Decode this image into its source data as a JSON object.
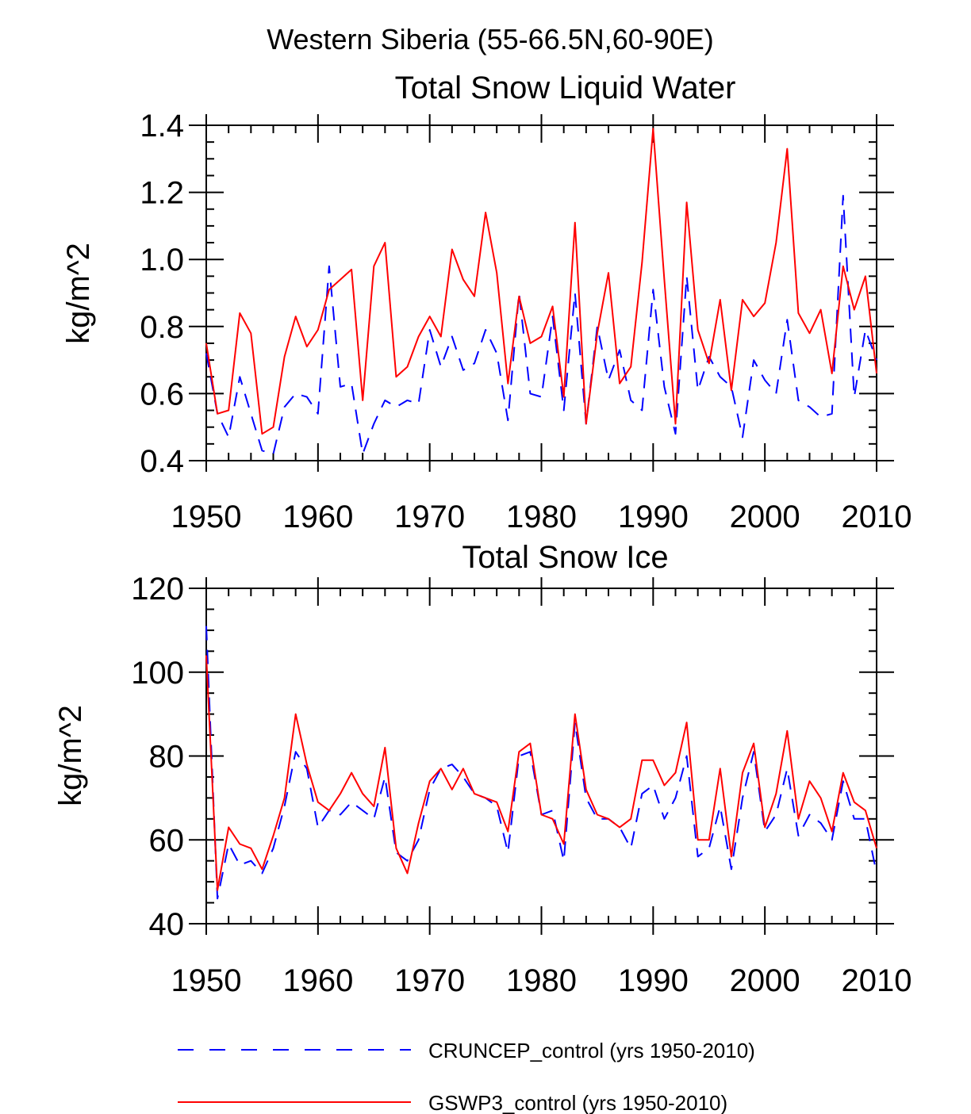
{
  "title": "Western Siberia (55-66.5N,60-90E)",
  "colors": {
    "cruncep": "#0000ff",
    "gswp3": "#ff0000",
    "axis": "#000000"
  },
  "legend": [
    {
      "key": "cruncep",
      "label": "CRUNCEP_control (yrs 1950-2010)",
      "style": "dashed"
    },
    {
      "key": "gswp3",
      "label": "GSWP3_control (yrs 1950-2010)",
      "style": "solid"
    }
  ],
  "chart_data": [
    {
      "type": "line",
      "title": "Total Snow Liquid Water",
      "xlabel": "",
      "ylabel": "kg/m^2",
      "xlim": [
        1950,
        2010
      ],
      "ylim": [
        0.4,
        1.4
      ],
      "xticks": [
        1950,
        1960,
        1970,
        1980,
        1990,
        2000,
        2010
      ],
      "yticks": [
        0.4,
        0.6,
        0.8,
        1.0,
        1.2,
        1.4
      ],
      "ytick_labels": [
        "0.4",
        "0.6",
        "0.8",
        "1.0",
        "1.2",
        "1.4"
      ],
      "x": [
        1950,
        1951,
        1952,
        1953,
        1954,
        1955,
        1956,
        1957,
        1958,
        1959,
        1960,
        1961,
        1962,
        1963,
        1964,
        1965,
        1966,
        1967,
        1968,
        1969,
        1970,
        1971,
        1972,
        1973,
        1974,
        1975,
        1976,
        1977,
        1978,
        1979,
        1980,
        1981,
        1982,
        1983,
        1984,
        1985,
        1986,
        1987,
        1988,
        1989,
        1990,
        1991,
        1992,
        1993,
        1994,
        1995,
        1996,
        1997,
        1998,
        1999,
        2000,
        2001,
        2002,
        2003,
        2004,
        2005,
        2006,
        2007,
        2008,
        2009,
        2010
      ],
      "series": [
        {
          "name": "CRUNCEP_control (yrs 1950-2010)",
          "key": "cruncep",
          "values": [
            0.72,
            0.54,
            0.47,
            0.65,
            0.54,
            0.43,
            0.42,
            0.56,
            0.6,
            0.59,
            0.54,
            0.98,
            0.62,
            0.63,
            0.42,
            0.51,
            0.58,
            0.56,
            0.58,
            0.57,
            0.79,
            0.68,
            0.77,
            0.67,
            0.69,
            0.79,
            0.72,
            0.52,
            0.9,
            0.6,
            0.59,
            0.83,
            0.55,
            0.9,
            0.51,
            0.8,
            0.64,
            0.73,
            0.58,
            0.55,
            0.91,
            0.62,
            0.48,
            0.95,
            0.61,
            0.71,
            0.65,
            0.62,
            0.47,
            0.7,
            0.64,
            0.6,
            0.82,
            0.58,
            0.56,
            0.53,
            0.54,
            1.19,
            0.59,
            0.79,
            0.7
          ]
        },
        {
          "name": "GSWP3_control (yrs 1950-2010)",
          "key": "gswp3",
          "values": [
            0.75,
            0.54,
            0.55,
            0.84,
            0.78,
            0.48,
            0.5,
            0.71,
            0.83,
            0.74,
            0.79,
            0.91,
            0.94,
            0.97,
            0.58,
            0.98,
            1.05,
            0.65,
            0.68,
            0.77,
            0.83,
            0.77,
            1.03,
            0.94,
            0.89,
            1.14,
            0.96,
            0.63,
            0.89,
            0.75,
            0.77,
            0.86,
            0.59,
            1.11,
            0.51,
            0.78,
            0.96,
            0.63,
            0.68,
            0.99,
            1.39,
            0.94,
            0.51,
            1.17,
            0.79,
            0.69,
            0.88,
            0.61,
            0.88,
            0.83,
            0.87,
            1.05,
            1.33,
            0.84,
            0.78,
            0.85,
            0.66,
            0.98,
            0.85,
            0.95,
            0.66
          ]
        }
      ]
    },
    {
      "type": "line",
      "title": "Total Snow Ice",
      "xlabel": "",
      "ylabel": "kg/m^2",
      "xlim": [
        1950,
        2010
      ],
      "ylim": [
        40,
        120
      ],
      "xticks": [
        1950,
        1960,
        1970,
        1980,
        1990,
        2000,
        2010
      ],
      "yticks": [
        40,
        60,
        80,
        100,
        120
      ],
      "ytick_labels": [
        "40",
        "60",
        "80",
        "100",
        "120"
      ],
      "x": [
        1950,
        1951,
        1952,
        1953,
        1954,
        1955,
        1956,
        1957,
        1958,
        1959,
        1960,
        1961,
        1962,
        1963,
        1964,
        1965,
        1966,
        1967,
        1968,
        1969,
        1970,
        1971,
        1972,
        1973,
        1974,
        1975,
        1976,
        1977,
        1978,
        1979,
        1980,
        1981,
        1982,
        1983,
        1984,
        1985,
        1986,
        1987,
        1988,
        1989,
        1990,
        1991,
        1992,
        1993,
        1994,
        1995,
        1996,
        1997,
        1998,
        1999,
        2000,
        2001,
        2002,
        2003,
        2004,
        2005,
        2006,
        2007,
        2008,
        2009,
        2010
      ],
      "series": [
        {
          "name": "CRUNCEP_control (yrs 1950-2010)",
          "key": "cruncep",
          "values": [
            111,
            46,
            59,
            54,
            55,
            52,
            58,
            68,
            81,
            77,
            63,
            67,
            66,
            69,
            67,
            65,
            75,
            57,
            55,
            60,
            72,
            77,
            78,
            75,
            71,
            70,
            68,
            57,
            80,
            81,
            66,
            67,
            55,
            88,
            70,
            65,
            65,
            63,
            58,
            71,
            73,
            65,
            70,
            80,
            56,
            58,
            68,
            53,
            70,
            81,
            62,
            66,
            77,
            61,
            66,
            64,
            60,
            74,
            65,
            65,
            52
          ]
        },
        {
          "name": "GSWP3_control (yrs 1950-2010)",
          "key": "gswp3",
          "values": [
            104,
            48,
            63,
            59,
            58,
            53,
            61,
            70,
            90,
            78,
            69,
            67,
            71,
            76,
            71,
            68,
            82,
            58,
            52,
            64,
            74,
            77,
            72,
            77,
            71,
            70,
            69,
            62,
            81,
            83,
            66,
            65,
            59,
            90,
            72,
            66,
            65,
            63,
            65,
            79,
            79,
            73,
            76,
            88,
            60,
            60,
            77,
            56,
            76,
            83,
            63,
            71,
            86,
            65,
            74,
            70,
            62,
            76,
            69,
            67,
            58
          ]
        }
      ]
    }
  ]
}
